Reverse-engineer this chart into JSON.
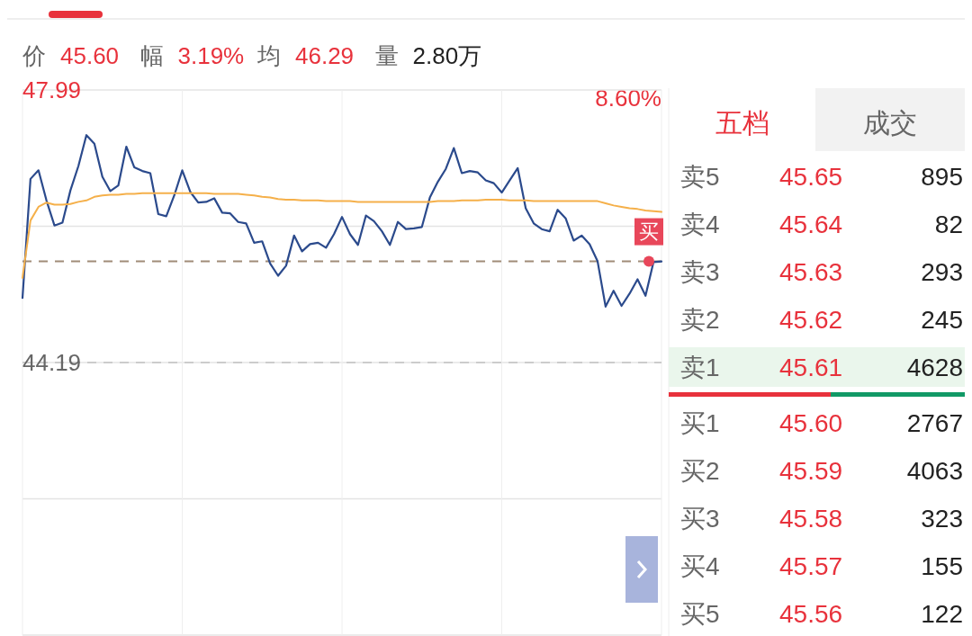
{
  "chart_data": {
    "type": "line",
    "categories": [
      null,
      null,
      null,
      null,
      null,
      null,
      null,
      null,
      null,
      null,
      null,
      null,
      null,
      null,
      null,
      null,
      null,
      null,
      null,
      null,
      null,
      null,
      null,
      null,
      null,
      null,
      null,
      null,
      null,
      null,
      null,
      null,
      null,
      null,
      null,
      null,
      null,
      null,
      null,
      null,
      null,
      null,
      null,
      null,
      null,
      null,
      null,
      null,
      null,
      null,
      null,
      null,
      null,
      null,
      null,
      null,
      null,
      null,
      null,
      null,
      null,
      null,
      null,
      null,
      null,
      null,
      null,
      null,
      null,
      null,
      null,
      null,
      null,
      null,
      null,
      null,
      null,
      null,
      null,
      null,
      null
    ],
    "series": [
      {
        "type": "line",
        "color": "#2b4a8c",
        "values": [
          45.09,
          46.75,
          46.87,
          46.45,
          46.1,
          46.14,
          46.59,
          46.93,
          47.36,
          47.24,
          46.78,
          46.58,
          46.66,
          47.2,
          46.91,
          46.86,
          46.83,
          46.26,
          46.23,
          46.52,
          46.87,
          46.57,
          46.42,
          46.43,
          46.48,
          46.28,
          46.27,
          46.15,
          46.13,
          45.86,
          45.88,
          45.57,
          45.4,
          45.54,
          45.96,
          45.74,
          45.84,
          45.86,
          45.79,
          45.98,
          46.22,
          45.98,
          45.83,
          46.24,
          46.16,
          46.02,
          45.83,
          46.15,
          46.05,
          46.06,
          46.08,
          46.49,
          46.71,
          46.89,
          47.18,
          46.83,
          46.86,
          46.84,
          46.73,
          46.69,
          46.56,
          46.73,
          46.9,
          46.34,
          46.13,
          46.05,
          46.02,
          46.32,
          46.2,
          45.89,
          45.96,
          45.84,
          45.6,
          44.97,
          45.19,
          44.98,
          45.15,
          45.35,
          45.12,
          45.59,
          45.6
        ]
      },
      {
        "type": "line",
        "color": "#f5b04a",
        "values": [
          45.37,
          46.17,
          46.36,
          46.42,
          46.39,
          46.39,
          46.4,
          46.43,
          46.45,
          46.5,
          46.52,
          46.53,
          46.53,
          46.54,
          46.54,
          46.55,
          46.55,
          46.55,
          46.55,
          46.55,
          46.55,
          46.55,
          46.55,
          46.55,
          46.54,
          46.54,
          46.54,
          46.54,
          46.53,
          46.52,
          46.5,
          46.49,
          46.47,
          46.46,
          46.46,
          46.45,
          46.45,
          46.45,
          46.44,
          46.44,
          46.44,
          46.44,
          46.43,
          46.43,
          46.43,
          46.43,
          46.43,
          46.43,
          46.43,
          46.43,
          46.43,
          46.43,
          46.44,
          46.44,
          46.44,
          46.45,
          46.45,
          46.45,
          46.46,
          46.46,
          46.46,
          46.45,
          46.45,
          46.45,
          46.44,
          46.44,
          46.44,
          46.44,
          46.44,
          46.44,
          46.44,
          46.44,
          46.44,
          46.41,
          46.38,
          46.36,
          46.34,
          46.33,
          46.31,
          46.3,
          46.29
        ]
      }
    ],
    "ylim": [
      40.39,
      47.99
    ],
    "yticks": [
      {
        "value": 47.99,
        "label": "47.99"
      },
      {
        "value": 46.09,
        "label": null
      },
      {
        "value": 44.19,
        "label": "44.19"
      },
      {
        "value": 42.29,
        "label": null
      },
      {
        "value": 40.39,
        "label": null
      }
    ],
    "grid": true,
    "ref_lines": [
      {
        "axis": "y",
        "value": 45.6,
        "color": "#a08c78",
        "line_style": "dashed"
      },
      {
        "axis": "y",
        "value": 44.19,
        "color": "#cccccc",
        "line_style": "dashed"
      }
    ],
    "annotations": [
      "价",
      "45.60",
      "幅",
      "3.19%",
      "均",
      "46.29",
      "量",
      "2.80万",
      "五档",
      "成交",
      "卖5",
      "45.65",
      "895",
      "卖4",
      "45.64",
      "82",
      "卖3",
      "45.63",
      "293",
      "卖2",
      "45.62",
      "245",
      "卖1",
      "45.61",
      "4628",
      "买1",
      "45.60",
      "2767",
      "买2",
      "45.59",
      "4063",
      "买3",
      "45.58",
      "323",
      "买4",
      "45.57",
      "155",
      "买5",
      "45.56",
      "122",
      "8.60%",
      {
        "text": "买",
        "y": 45.6
      }
    ]
  }
}
